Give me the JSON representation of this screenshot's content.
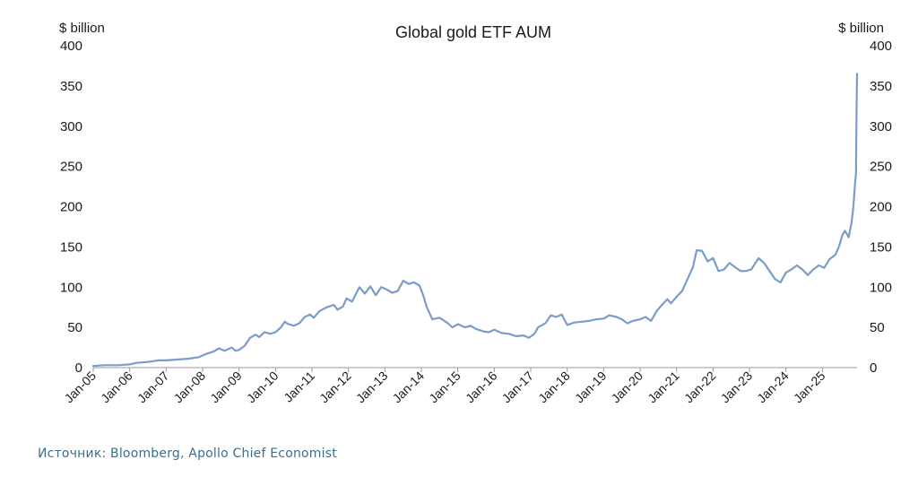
{
  "chart_data": {
    "type": "line",
    "title": "Global gold ETF AUM",
    "ylabel_left": "$ billion",
    "ylabel_right": "$ billion",
    "ylim": [
      0,
      400
    ],
    "yticks": [
      0,
      50,
      100,
      150,
      200,
      250,
      300,
      350,
      400
    ],
    "xticks": [
      "Jan-05",
      "Jan-06",
      "Jan-07",
      "Jan-08",
      "Jan-09",
      "Jan-10",
      "Jan-11",
      "Jan-12",
      "Jan-13",
      "Jan-14",
      "Jan-15",
      "Jan-16",
      "Jan-17",
      "Jan-18",
      "Jan-19",
      "Jan-20",
      "Jan-21",
      "Jan-22",
      "Jan-23",
      "Jan-24",
      "Jan-25"
    ],
    "xrange": [
      2005.0,
      2025.95
    ],
    "grid": false,
    "line_color": "#7a9cc6",
    "series": [
      {
        "name": "Global gold ETF AUM",
        "points": [
          [
            2005.0,
            2
          ],
          [
            2005.3,
            3
          ],
          [
            2005.7,
            3
          ],
          [
            2006.0,
            4
          ],
          [
            2006.2,
            6
          ],
          [
            2006.5,
            7
          ],
          [
            2006.8,
            9
          ],
          [
            2007.0,
            9
          ],
          [
            2007.3,
            10
          ],
          [
            2007.6,
            11
          ],
          [
            2007.9,
            13
          ],
          [
            2008.1,
            17
          ],
          [
            2008.3,
            20
          ],
          [
            2008.45,
            24
          ],
          [
            2008.6,
            21
          ],
          [
            2008.8,
            25
          ],
          [
            2008.9,
            21
          ],
          [
            2009.0,
            22
          ],
          [
            2009.15,
            27
          ],
          [
            2009.3,
            37
          ],
          [
            2009.45,
            41
          ],
          [
            2009.55,
            38
          ],
          [
            2009.7,
            44
          ],
          [
            2009.85,
            42
          ],
          [
            2010.0,
            44
          ],
          [
            2010.15,
            50
          ],
          [
            2010.25,
            57
          ],
          [
            2010.35,
            54
          ],
          [
            2010.5,
            52
          ],
          [
            2010.65,
            55
          ],
          [
            2010.8,
            63
          ],
          [
            2010.95,
            66
          ],
          [
            2011.05,
            62
          ],
          [
            2011.2,
            70
          ],
          [
            2011.4,
            75
          ],
          [
            2011.6,
            78
          ],
          [
            2011.7,
            72
          ],
          [
            2011.85,
            76
          ],
          [
            2011.95,
            86
          ],
          [
            2012.1,
            82
          ],
          [
            2012.3,
            100
          ],
          [
            2012.45,
            92
          ],
          [
            2012.6,
            101
          ],
          [
            2012.75,
            90
          ],
          [
            2012.9,
            100
          ],
          [
            2013.05,
            97
          ],
          [
            2013.2,
            93
          ],
          [
            2013.35,
            95
          ],
          [
            2013.5,
            108
          ],
          [
            2013.65,
            104
          ],
          [
            2013.8,
            106
          ],
          [
            2013.95,
            102
          ],
          [
            2014.05,
            90
          ],
          [
            2014.15,
            75
          ],
          [
            2014.3,
            60
          ],
          [
            2014.5,
            62
          ],
          [
            2014.7,
            56
          ],
          [
            2014.85,
            50
          ],
          [
            2015.0,
            54
          ],
          [
            2015.2,
            50
          ],
          [
            2015.35,
            52
          ],
          [
            2015.5,
            48
          ],
          [
            2015.7,
            45
          ],
          [
            2015.85,
            44
          ],
          [
            2016.0,
            47
          ],
          [
            2016.2,
            43
          ],
          [
            2016.4,
            42
          ],
          [
            2016.6,
            39
          ],
          [
            2016.8,
            40
          ],
          [
            2016.95,
            37
          ],
          [
            2017.1,
            42
          ],
          [
            2017.2,
            50
          ],
          [
            2017.4,
            55
          ],
          [
            2017.55,
            65
          ],
          [
            2017.7,
            63
          ],
          [
            2017.85,
            66
          ],
          [
            2018.0,
            53
          ],
          [
            2018.2,
            56
          ],
          [
            2018.4,
            57
          ],
          [
            2018.6,
            58
          ],
          [
            2018.8,
            60
          ],
          [
            2019.0,
            61
          ],
          [
            2019.15,
            65
          ],
          [
            2019.35,
            63
          ],
          [
            2019.5,
            60
          ],
          [
            2019.65,
            55
          ],
          [
            2019.8,
            58
          ],
          [
            2020.0,
            60
          ],
          [
            2020.15,
            63
          ],
          [
            2020.3,
            58
          ],
          [
            2020.45,
            70
          ],
          [
            2020.6,
            78
          ],
          [
            2020.75,
            85
          ],
          [
            2020.85,
            80
          ],
          [
            2021.0,
            88
          ],
          [
            2021.15,
            95
          ],
          [
            2021.3,
            110
          ],
          [
            2021.45,
            125
          ],
          [
            2021.55,
            146
          ],
          [
            2021.7,
            145
          ],
          [
            2021.85,
            132
          ],
          [
            2022.0,
            136
          ],
          [
            2022.15,
            120
          ],
          [
            2022.3,
            122
          ],
          [
            2022.45,
            130
          ],
          [
            2022.6,
            125
          ],
          [
            2022.75,
            120
          ],
          [
            2022.9,
            120
          ],
          [
            2023.05,
            122
          ],
          [
            2023.25,
            136
          ],
          [
            2023.4,
            130
          ],
          [
            2023.55,
            120
          ],
          [
            2023.7,
            110
          ],
          [
            2023.85,
            106
          ],
          [
            2024.0,
            118
          ],
          [
            2024.15,
            122
          ],
          [
            2024.3,
            127
          ],
          [
            2024.45,
            122
          ],
          [
            2024.6,
            115
          ],
          [
            2024.75,
            122
          ],
          [
            2024.9,
            127
          ],
          [
            2025.05,
            124
          ],
          [
            2025.2,
            135
          ],
          [
            2025.35,
            140
          ],
          [
            2025.45,
            150
          ],
          [
            2025.55,
            165
          ],
          [
            2025.62,
            170
          ],
          [
            2025.72,
            162
          ],
          [
            2025.8,
            180
          ],
          [
            2025.85,
            200
          ],
          [
            2025.88,
            220
          ],
          [
            2025.9,
            232
          ],
          [
            2025.92,
            240
          ],
          [
            2025.93,
            290
          ],
          [
            2025.94,
            330
          ],
          [
            2025.95,
            365
          ]
        ]
      }
    ]
  },
  "footer": {
    "source": "Источник: Bloomberg, Apollo Chief Economist"
  }
}
